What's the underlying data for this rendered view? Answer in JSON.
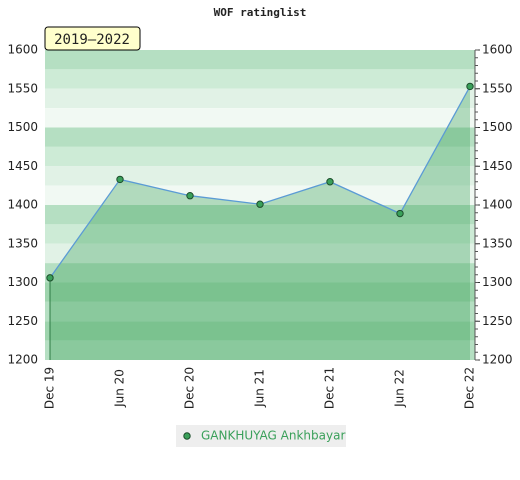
{
  "chart_data": {
    "type": "line",
    "title": "WOF ratinglist",
    "annotation": "2019–2022",
    "categories": [
      "Dec 19",
      "Jun 20",
      "Dec 20",
      "Jun 21",
      "Dec 21",
      "Jun 22",
      "Dec 22"
    ],
    "series": [
      {
        "name": "GANKHUYAG Ankhbayar",
        "color": "#3aa05a",
        "values": [
          1306,
          1433,
          1412,
          1401,
          1430,
          1389,
          1553
        ]
      }
    ],
    "ylim": [
      1200,
      1600
    ],
    "yticks": [
      1200,
      1250,
      1300,
      1350,
      1400,
      1450,
      1500,
      1550,
      1600
    ]
  }
}
